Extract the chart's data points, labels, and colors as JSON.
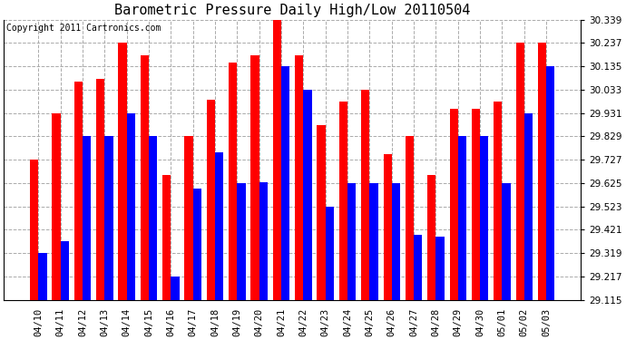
{
  "title": "Barometric Pressure Daily High/Low 20110504",
  "copyright": "Copyright 2011 Cartronics.com",
  "categories": [
    "04/10",
    "04/11",
    "04/12",
    "04/13",
    "04/14",
    "04/15",
    "04/16",
    "04/17",
    "04/18",
    "04/19",
    "04/20",
    "04/21",
    "04/22",
    "04/23",
    "04/24",
    "04/25",
    "04/26",
    "04/27",
    "04/28",
    "04/29",
    "04/30",
    "05/01",
    "05/02",
    "05/03"
  ],
  "highs": [
    29.727,
    29.931,
    30.07,
    30.08,
    30.237,
    30.185,
    29.66,
    29.829,
    29.99,
    30.15,
    30.185,
    30.339,
    30.185,
    29.88,
    29.98,
    30.033,
    29.75,
    29.829,
    29.66,
    29.951,
    29.951,
    29.98,
    30.237,
    30.237
  ],
  "lows": [
    29.319,
    29.37,
    29.829,
    29.829,
    29.931,
    29.829,
    29.217,
    29.6,
    29.76,
    29.625,
    29.63,
    30.135,
    30.033,
    29.523,
    29.625,
    29.625,
    29.625,
    29.4,
    29.39,
    29.829,
    29.829,
    29.625,
    29.931,
    30.135
  ],
  "high_color": "#ff0000",
  "low_color": "#0000ff",
  "ylim_min": 29.115,
  "ylim_max": 30.339,
  "yticks": [
    29.115,
    29.217,
    29.319,
    29.421,
    29.523,
    29.625,
    29.727,
    29.829,
    29.931,
    30.033,
    30.135,
    30.237,
    30.339
  ],
  "bg_color": "#ffffff",
  "plot_bg": "#ffffff",
  "grid_color": "#aaaaaa",
  "bar_width": 0.38,
  "title_fontsize": 11,
  "tick_fontsize": 7.5,
  "copyright_fontsize": 7
}
